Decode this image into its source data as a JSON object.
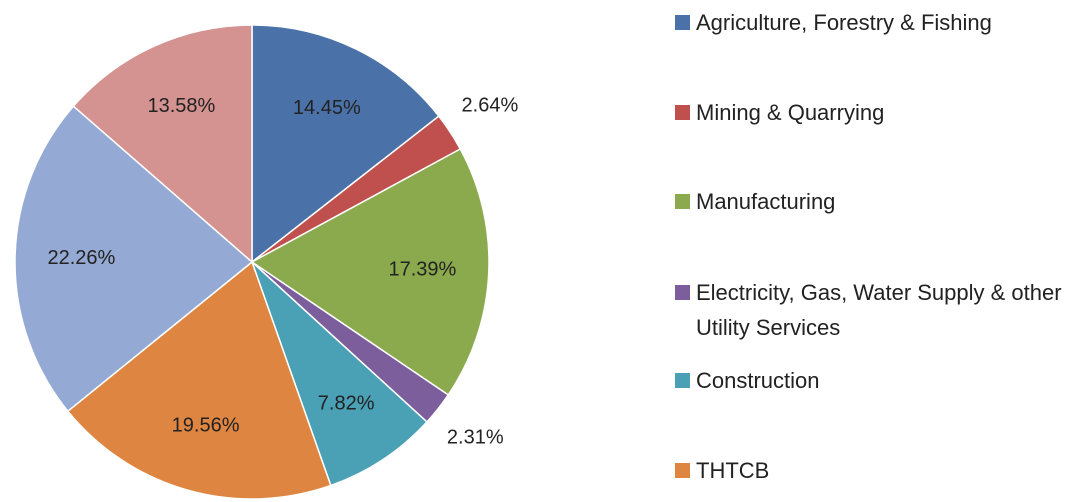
{
  "chart_data": {
    "type": "pie",
    "categories": [
      "Agriculture, Forestry & Fishing",
      "Mining & Quarrying",
      "Manufacturing",
      "Electricity, Gas, Water Supply & other Utility Services",
      "Construction",
      "THTCB",
      null,
      null
    ],
    "values": [
      14.45,
      2.64,
      17.39,
      2.31,
      7.82,
      19.56,
      22.26,
      13.58
    ],
    "value_labels": [
      "14.45%",
      "2.64%",
      "17.39%",
      "2.31%",
      "7.82%",
      "19.56%",
      "22.26%",
      "13.58%"
    ],
    "colors": [
      "#4a72a8",
      "#c0504d",
      "#8ba94d",
      "#7b5e9b",
      "#4aa0b5",
      "#de8641",
      "#94a9d3",
      "#d49391"
    ]
  }
}
